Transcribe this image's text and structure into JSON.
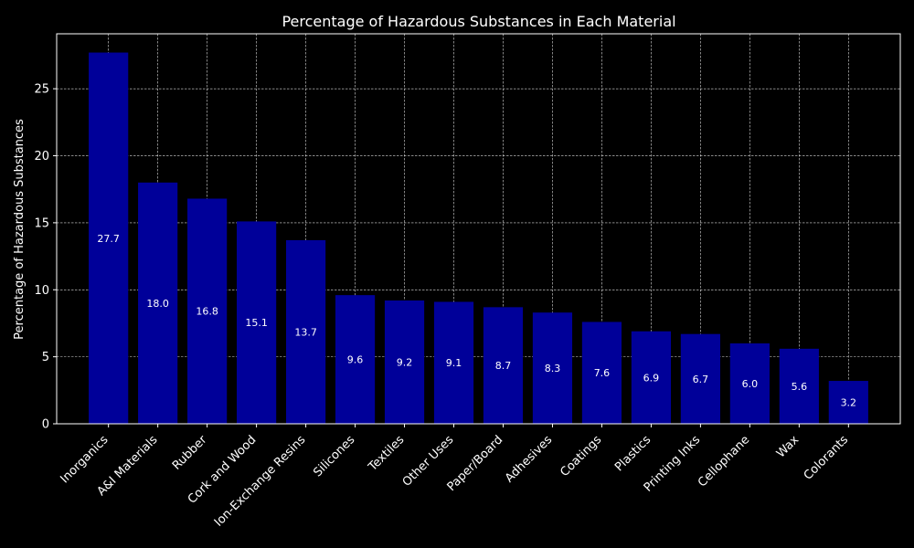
{
  "chart_data": {
    "type": "bar",
    "title": "Percentage of Hazardous Substances in Each Material",
    "xlabel": "",
    "ylabel": "Percentage of Hazardous Substances",
    "ylim": [
      0,
      29.1
    ],
    "yticks": [
      0,
      5,
      10,
      15,
      20,
      25
    ],
    "grid": true,
    "bar_color": "#000099",
    "background_color": "#000000",
    "text_color": "#ffffff",
    "categories": [
      "Inorganics",
      "A&I Materials",
      "Rubber",
      "Cork and Wood",
      "Ion-Exchange Resins",
      "Silicones",
      "Textiles",
      "Other Uses",
      "Paper/Board",
      "Adhesives",
      "Coatings",
      "Plastics",
      "Printing Inks",
      "Cellophane",
      "Wax",
      "Colorants"
    ],
    "values": [
      27.7,
      18.0,
      16.8,
      15.1,
      13.7,
      9.6,
      9.2,
      9.1,
      8.7,
      8.3,
      7.6,
      6.9,
      6.7,
      6.0,
      5.6,
      3.2
    ],
    "value_labels": [
      "27.7",
      "18.0",
      "16.8",
      "15.1",
      "13.7",
      "9.6",
      "9.2",
      "9.1",
      "8.7",
      "8.3",
      "7.6",
      "6.9",
      "6.7",
      "6.0",
      "5.6",
      "3.2"
    ]
  }
}
